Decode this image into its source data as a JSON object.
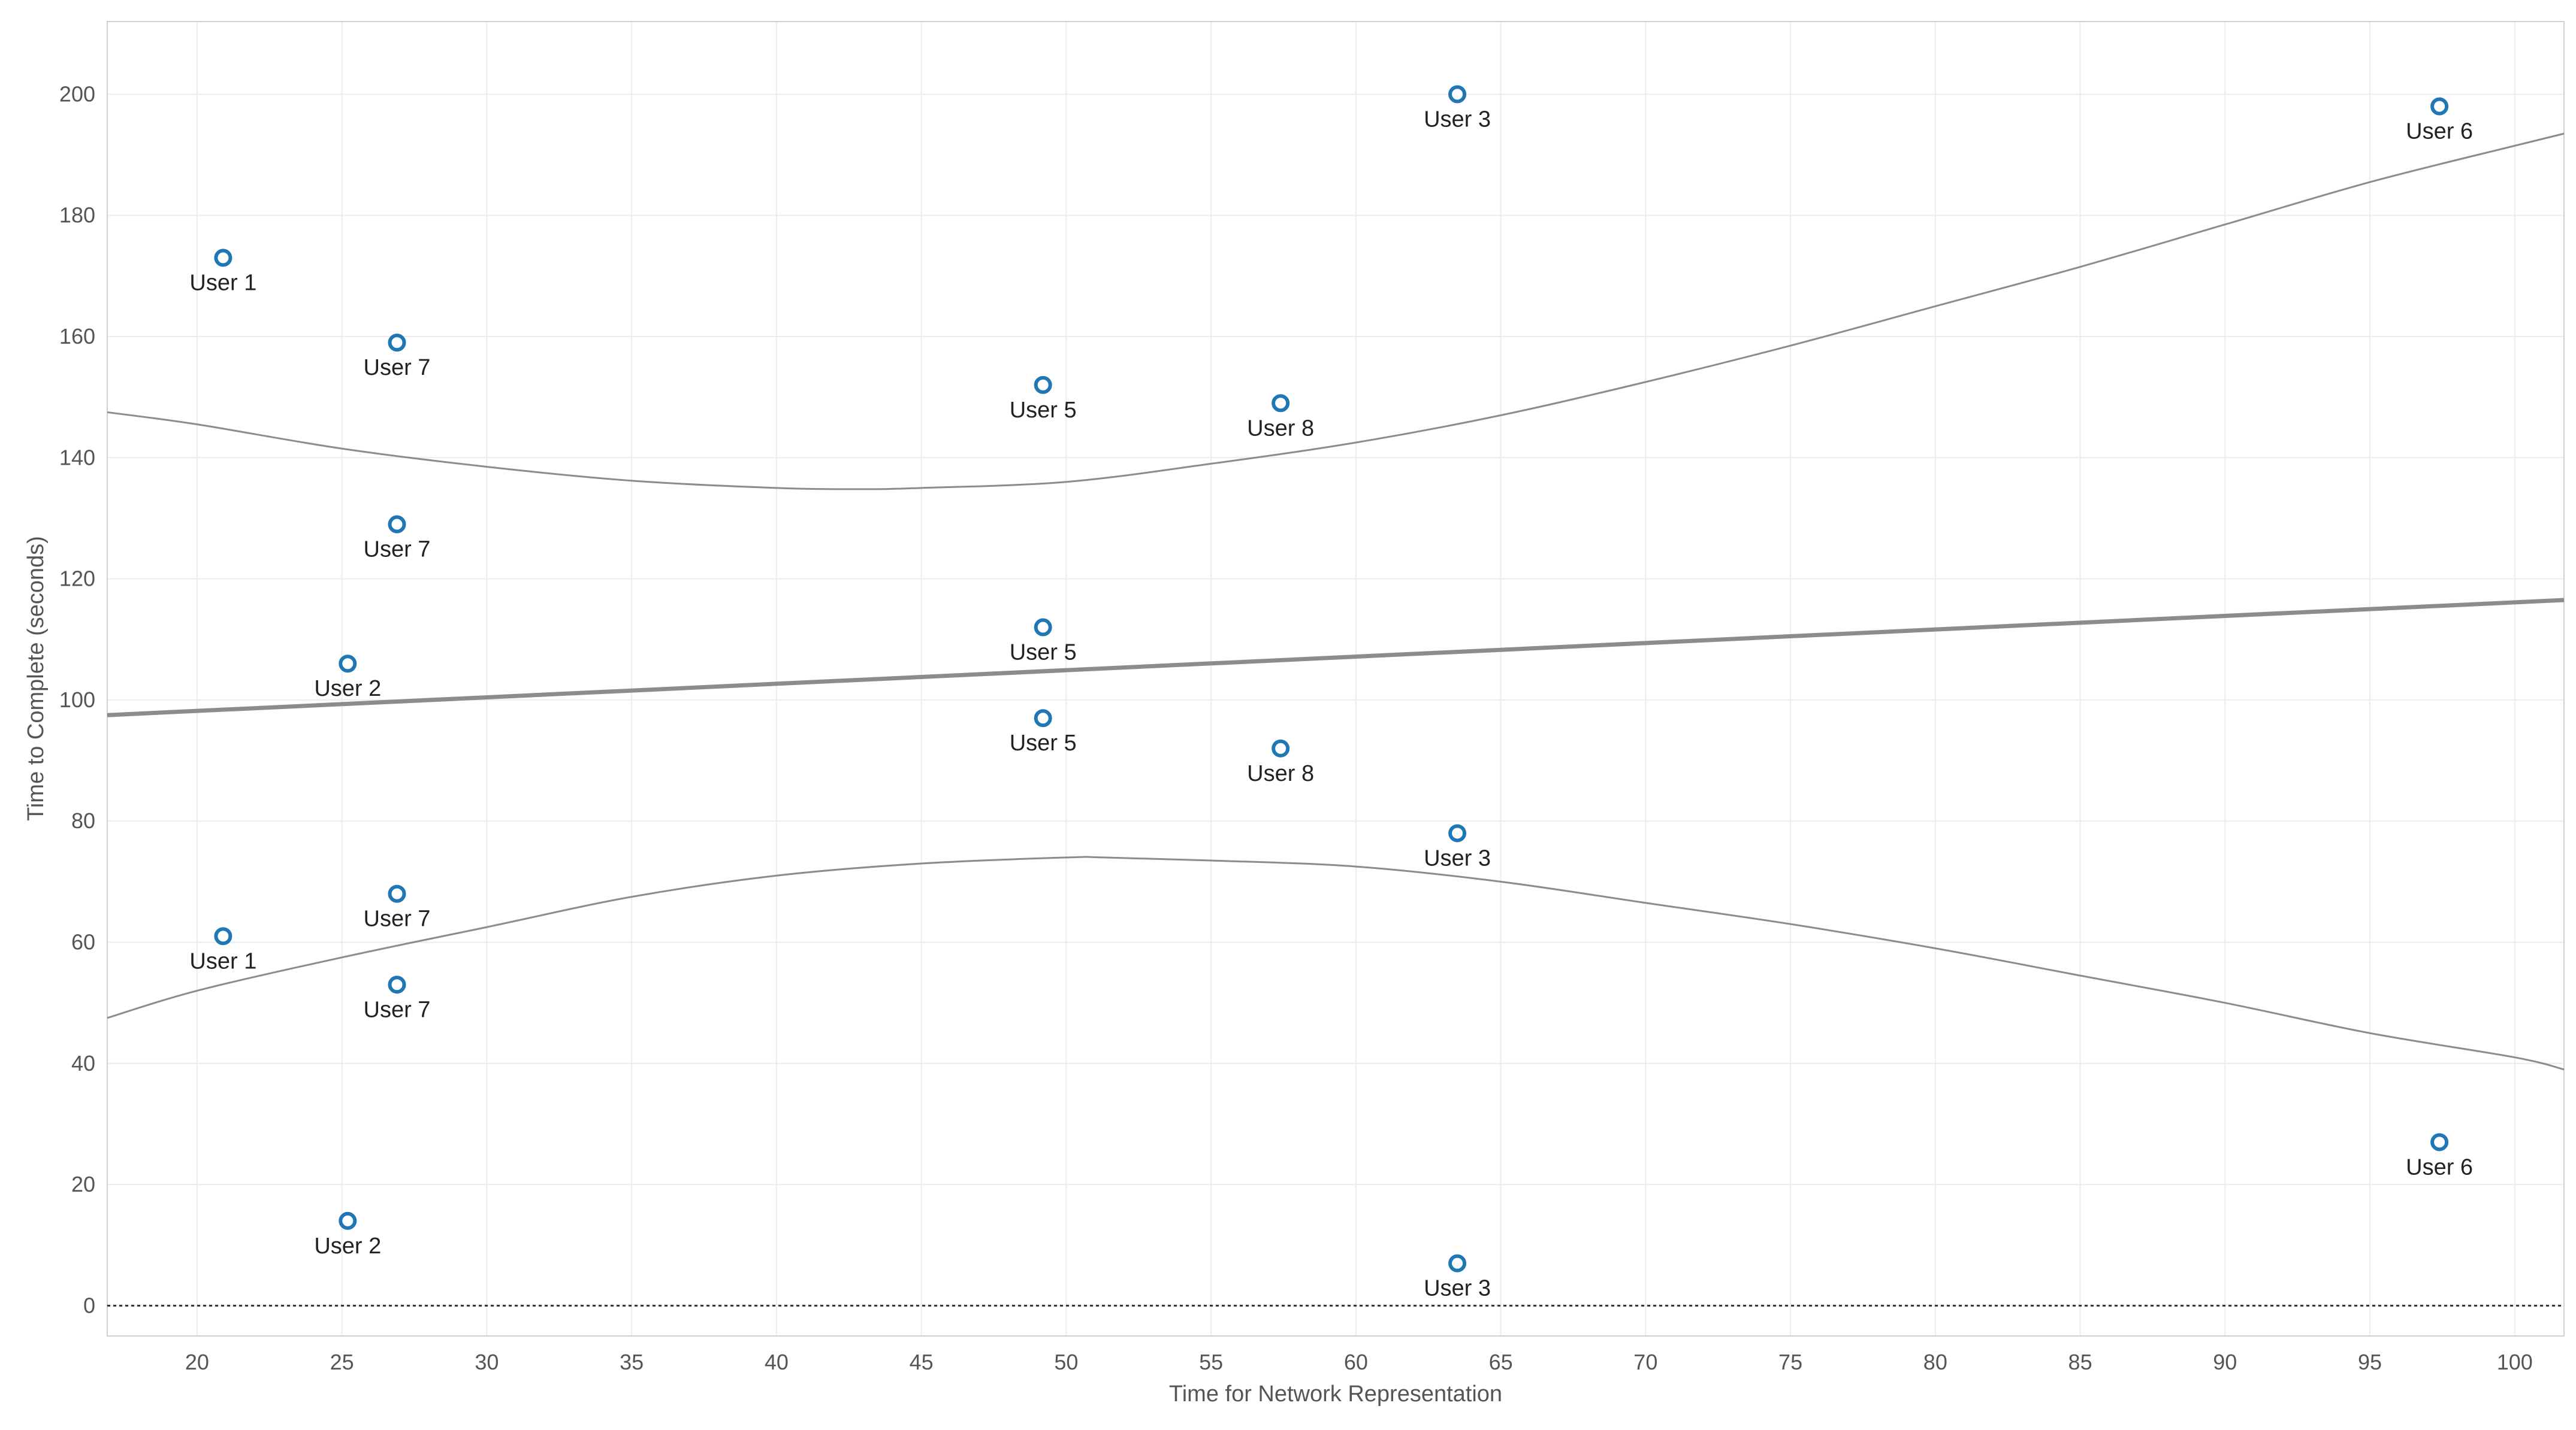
{
  "chart_data": {
    "type": "scatter",
    "xlabel": "Time for Network Representation",
    "ylabel": "Time to Complete (seconds)",
    "xlim": [
      16.9,
      101.7
    ],
    "ylim": [
      -5,
      212
    ],
    "xticks": [
      20,
      25,
      30,
      35,
      40,
      45,
      50,
      55,
      60,
      65,
      70,
      75,
      80,
      85,
      90,
      95,
      100
    ],
    "yticks": [
      0,
      20,
      40,
      60,
      80,
      100,
      120,
      140,
      160,
      180,
      200
    ],
    "grid": true,
    "legend": "none",
    "marker": "open-circle",
    "colors": {
      "marker": "#1f77b4",
      "trend": "#8c8c8c",
      "grid": "#ececec",
      "axis": "#d0d0d0",
      "zero_line": "#333333"
    },
    "points": [
      {
        "label": "User 1",
        "x": 20.9,
        "y": 173
      },
      {
        "label": "User 7",
        "x": 26.9,
        "y": 159
      },
      {
        "label": "User 7",
        "x": 26.9,
        "y": 129
      },
      {
        "label": "User 2",
        "x": 25.2,
        "y": 106
      },
      {
        "label": "User 7",
        "x": 26.9,
        "y": 68
      },
      {
        "label": "User 1",
        "x": 20.9,
        "y": 61
      },
      {
        "label": "User 7",
        "x": 26.9,
        "y": 53
      },
      {
        "label": "User 2",
        "x": 25.2,
        "y": 14
      },
      {
        "label": "User 5",
        "x": 49.2,
        "y": 152
      },
      {
        "label": "User 5",
        "x": 49.2,
        "y": 112
      },
      {
        "label": "User 5",
        "x": 49.2,
        "y": 97
      },
      {
        "label": "User 8",
        "x": 57.4,
        "y": 149
      },
      {
        "label": "User 8",
        "x": 57.4,
        "y": 92
      },
      {
        "label": "User 3",
        "x": 63.5,
        "y": 200
      },
      {
        "label": "User 3",
        "x": 63.5,
        "y": 78
      },
      {
        "label": "User 3",
        "x": 63.5,
        "y": 7
      },
      {
        "label": "User 6",
        "x": 97.4,
        "y": 198
      },
      {
        "label": "User 6",
        "x": 97.4,
        "y": 27
      }
    ],
    "trend_line": {
      "x": [
        16.9,
        101.7
      ],
      "y": [
        97.5,
        116.5
      ]
    },
    "confidence_band": {
      "upper": {
        "x": [
          16.9,
          20,
          25,
          30,
          35,
          40,
          42.9,
          45,
          50,
          55,
          60,
          65,
          70,
          75,
          80,
          85,
          90,
          95,
          100,
          101.7
        ],
        "y": [
          147.5,
          145.5,
          141.5,
          138.5,
          136.2,
          135,
          134.8,
          135,
          136,
          139,
          142.5,
          147,
          152.5,
          158.5,
          165,
          171.5,
          178.5,
          185.5,
          191.5,
          193.5
        ]
      },
      "lower": {
        "x": [
          16.9,
          20,
          25,
          30,
          35,
          40,
          45,
          50,
          51.3,
          55,
          60,
          65,
          70,
          75,
          80,
          85,
          90,
          95,
          100,
          101.7
        ],
        "y": [
          47.5,
          52,
          57.5,
          62.5,
          67.5,
          71,
          73,
          74,
          74,
          73.5,
          72.5,
          70,
          66.5,
          63,
          59,
          54.5,
          50,
          45,
          41,
          39
        ]
      }
    }
  }
}
